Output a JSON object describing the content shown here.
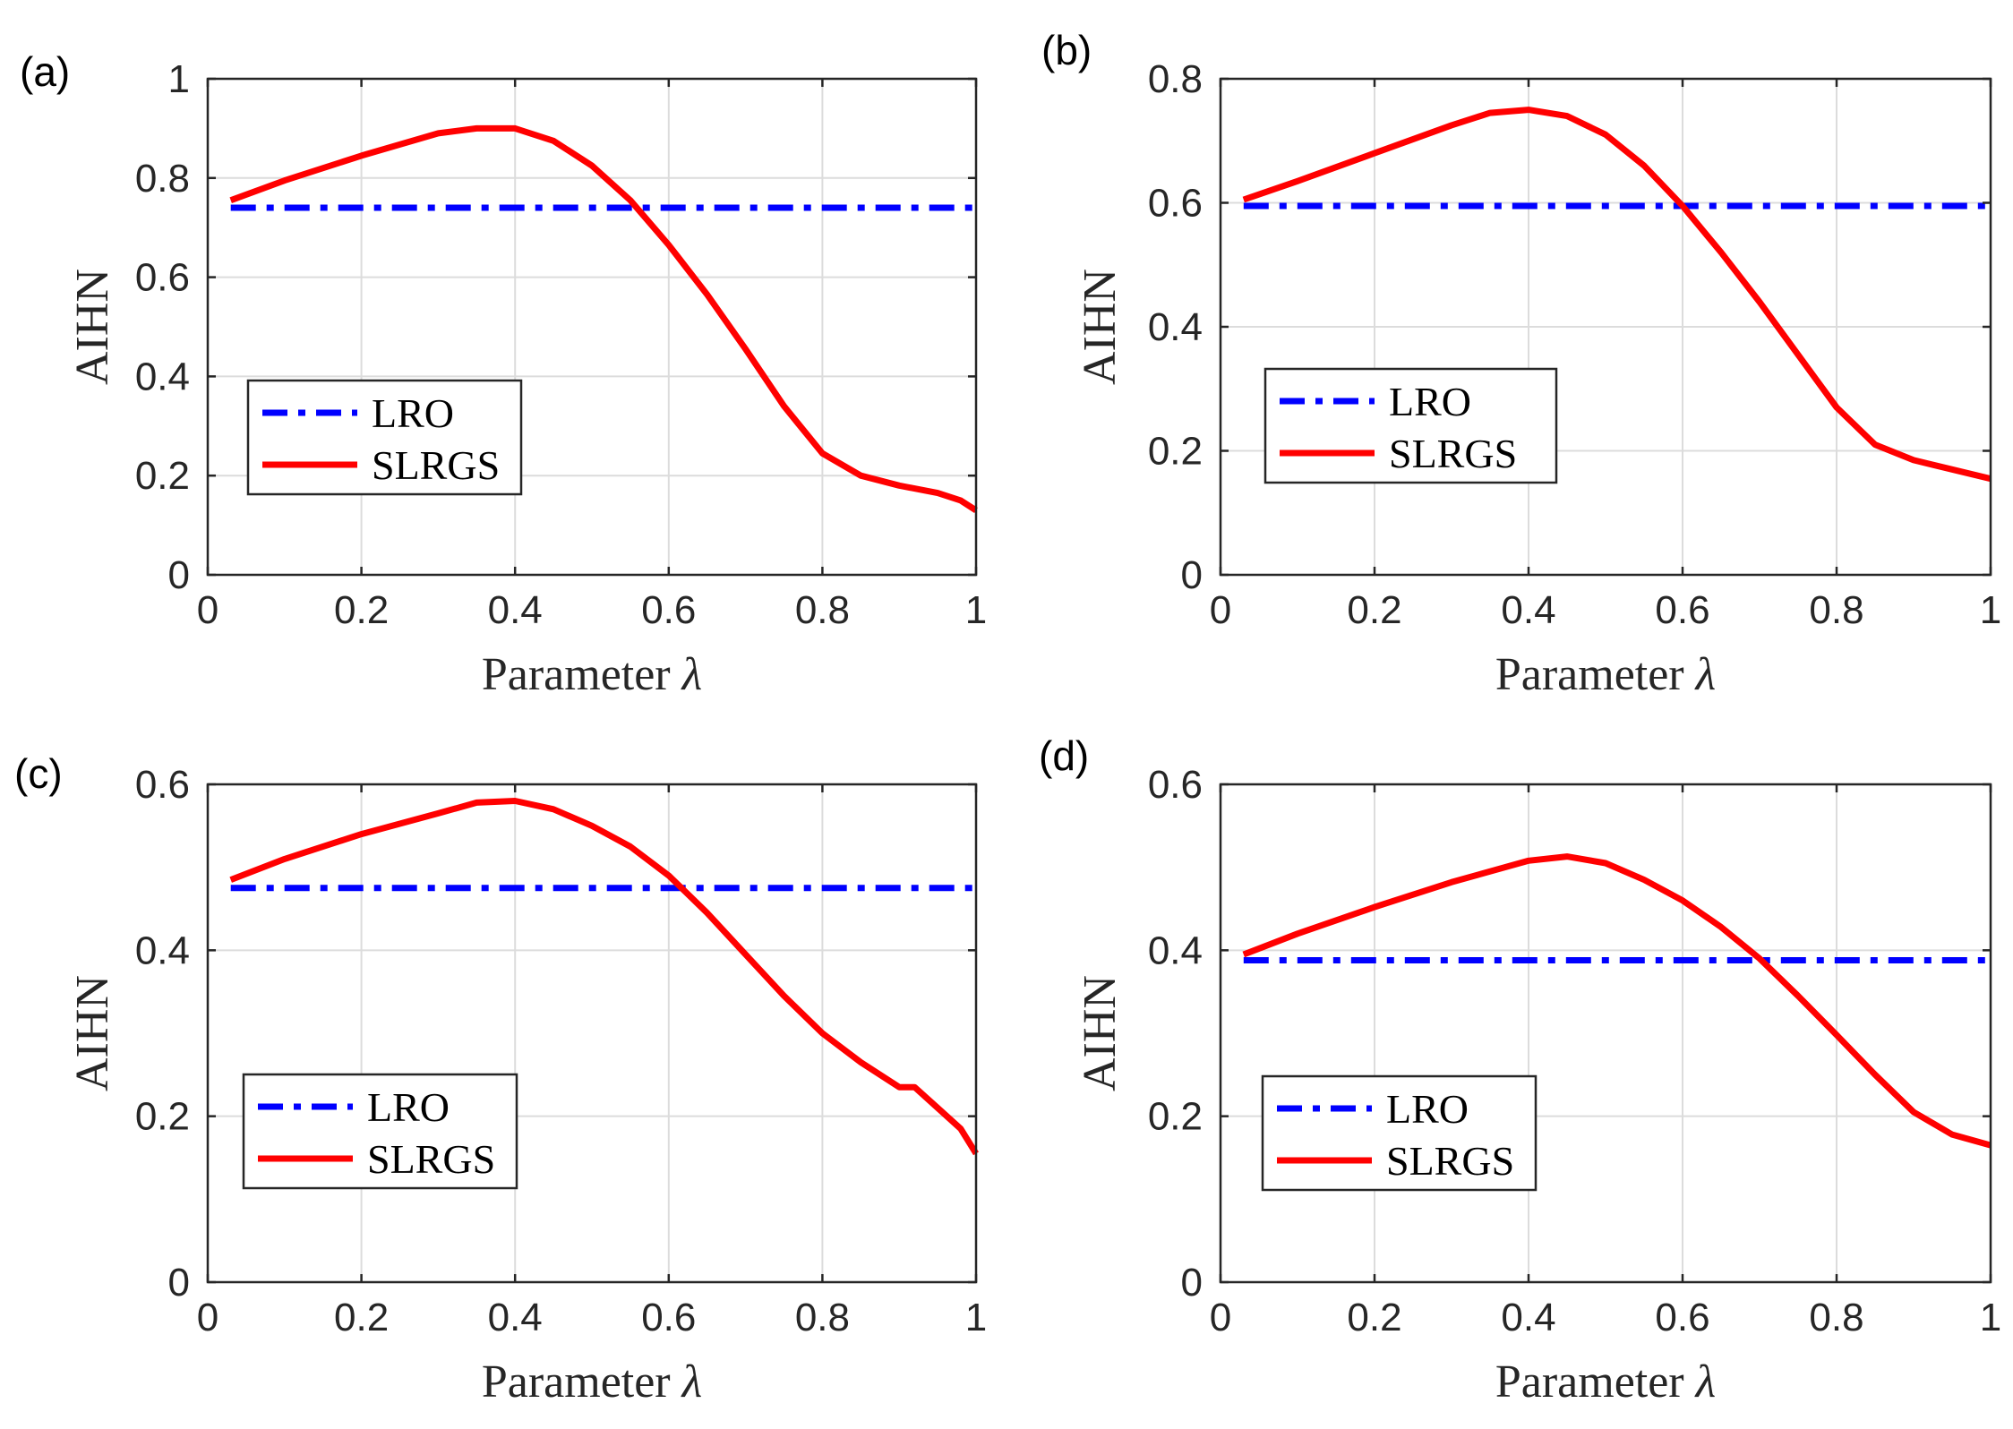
{
  "chart_data": [
    {
      "type": "line",
      "panel_label": "(a)",
      "xlabel": "Parameter",
      "xlabel_symbol": "λ",
      "ylabel": "AIHN",
      "xlim": [
        0,
        1
      ],
      "ylim": [
        0,
        1
      ],
      "xticks": [
        "0",
        "0.2",
        "0.4",
        "0.6",
        "0.8",
        "1"
      ],
      "yticks": [
        "0",
        "0.2",
        "0.4",
        "0.6",
        "0.8",
        "1"
      ],
      "grid": true,
      "legend_position": "lower-left",
      "series": [
        {
          "name": "LRO",
          "color": "#0000ff",
          "style": "dash-dot",
          "x": [
            0.03,
            1.0
          ],
          "y": [
            0.74,
            0.74
          ]
        },
        {
          "name": "SLRGS",
          "color": "#ff0000",
          "style": "solid",
          "x": [
            0.03,
            0.1,
            0.2,
            0.3,
            0.35,
            0.4,
            0.45,
            0.5,
            0.55,
            0.6,
            0.65,
            0.7,
            0.75,
            0.8,
            0.85,
            0.9,
            0.95,
            0.98,
            1.0
          ],
          "y": [
            0.755,
            0.795,
            0.845,
            0.89,
            0.9,
            0.9,
            0.875,
            0.825,
            0.755,
            0.665,
            0.565,
            0.455,
            0.34,
            0.245,
            0.2,
            0.18,
            0.165,
            0.15,
            0.13
          ]
        }
      ]
    },
    {
      "type": "line",
      "panel_label": "(b)",
      "xlabel": "Parameter",
      "xlabel_symbol": "λ",
      "ylabel": "AIHN",
      "xlim": [
        0,
        1
      ],
      "ylim": [
        0,
        0.8
      ],
      "xticks": [
        "0",
        "0.2",
        "0.4",
        "0.6",
        "0.8",
        "1"
      ],
      "yticks": [
        "0",
        "0.2",
        "0.4",
        "0.6",
        "0.8"
      ],
      "grid": true,
      "legend_position": "lower-left",
      "series": [
        {
          "name": "LRO",
          "color": "#0000ff",
          "style": "dash-dot",
          "x": [
            0.03,
            1.0
          ],
          "y": [
            0.595,
            0.595
          ]
        },
        {
          "name": "SLRGS",
          "color": "#ff0000",
          "style": "solid",
          "x": [
            0.03,
            0.1,
            0.2,
            0.3,
            0.35,
            0.4,
            0.45,
            0.5,
            0.55,
            0.6,
            0.65,
            0.7,
            0.75,
            0.8,
            0.85,
            0.9,
            0.95,
            1.0
          ],
          "y": [
            0.605,
            0.635,
            0.68,
            0.725,
            0.745,
            0.75,
            0.74,
            0.71,
            0.66,
            0.595,
            0.52,
            0.44,
            0.355,
            0.27,
            0.21,
            0.185,
            0.17,
            0.155
          ]
        }
      ]
    },
    {
      "type": "line",
      "panel_label": "(c)",
      "xlabel": "Parameter",
      "xlabel_symbol": "λ",
      "ylabel": "AIHN",
      "xlim": [
        0,
        1
      ],
      "ylim": [
        0,
        0.6
      ],
      "xticks": [
        "0",
        "0.2",
        "0.4",
        "0.6",
        "0.8",
        "1"
      ],
      "yticks": [
        "0",
        "0.2",
        "0.4",
        "0.6"
      ],
      "grid": true,
      "legend_position": "lower-left",
      "series": [
        {
          "name": "LRO",
          "color": "#0000ff",
          "style": "dash-dot",
          "x": [
            0.03,
            1.0
          ],
          "y": [
            0.475,
            0.475
          ]
        },
        {
          "name": "SLRGS",
          "color": "#ff0000",
          "style": "solid",
          "x": [
            0.03,
            0.1,
            0.2,
            0.3,
            0.35,
            0.4,
            0.45,
            0.5,
            0.55,
            0.6,
            0.65,
            0.7,
            0.75,
            0.8,
            0.85,
            0.9,
            0.92,
            0.95,
            0.98,
            1.0
          ],
          "y": [
            0.485,
            0.51,
            0.54,
            0.565,
            0.578,
            0.58,
            0.57,
            0.55,
            0.525,
            0.49,
            0.445,
            0.395,
            0.345,
            0.3,
            0.265,
            0.235,
            0.235,
            0.21,
            0.185,
            0.155
          ]
        }
      ]
    },
    {
      "type": "line",
      "panel_label": "(d)",
      "xlabel": "Parameter",
      "xlabel_symbol": "λ",
      "ylabel": "AIHN",
      "xlim": [
        0,
        1
      ],
      "ylim": [
        0,
        0.6
      ],
      "xticks": [
        "0",
        "0.2",
        "0.4",
        "0.6",
        "0.8",
        "1"
      ],
      "yticks": [
        "0",
        "0.2",
        "0.4",
        "0.6"
      ],
      "grid": true,
      "legend_position": "lower-left",
      "series": [
        {
          "name": "LRO",
          "color": "#0000ff",
          "style": "dash-dot",
          "x": [
            0.03,
            1.0
          ],
          "y": [
            0.388,
            0.388
          ]
        },
        {
          "name": "SLRGS",
          "color": "#ff0000",
          "style": "solid",
          "x": [
            0.03,
            0.1,
            0.2,
            0.3,
            0.4,
            0.45,
            0.5,
            0.55,
            0.6,
            0.65,
            0.7,
            0.75,
            0.8,
            0.85,
            0.9,
            0.95,
            1.0
          ],
          "y": [
            0.395,
            0.42,
            0.452,
            0.482,
            0.508,
            0.513,
            0.505,
            0.485,
            0.46,
            0.428,
            0.39,
            0.345,
            0.298,
            0.25,
            0.205,
            0.178,
            0.165
          ]
        }
      ]
    }
  ]
}
